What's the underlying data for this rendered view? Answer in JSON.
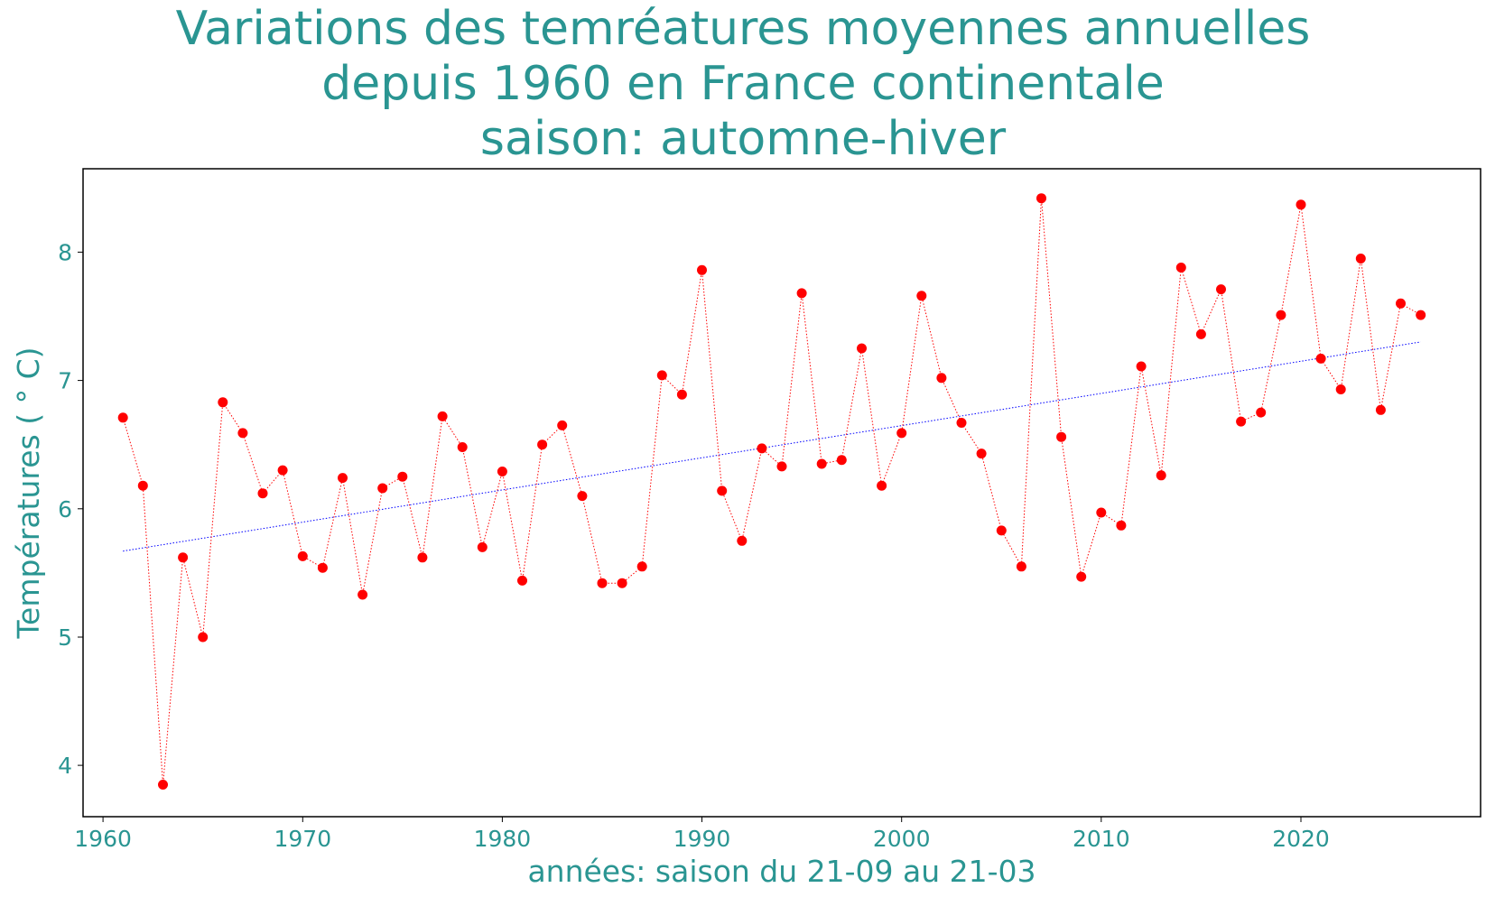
{
  "chart_data": {
    "type": "line",
    "title_lines": [
      "Variations des temréatures moyennes annuelles",
      "depuis 1960 en France continentale",
      "saison: automne-hiver"
    ],
    "xlabel": "années: saison du 21-09 au 21-03",
    "ylabel": "Températures ( ° C)",
    "xlim": [
      1959,
      2029
    ],
    "ylim": [
      3.6,
      8.65
    ],
    "xticks": [
      1960,
      1970,
      1980,
      1990,
      2000,
      2010,
      2020
    ],
    "yticks": [
      4,
      5,
      6,
      7,
      8
    ],
    "grid": false,
    "legend": "none",
    "colors": {
      "text": "#2a9592",
      "series": "#ff0000",
      "trend": "#0000ff",
      "frame": "#000000"
    },
    "series": [
      {
        "style": "red dotted line with circle markers",
        "x": [
          1961,
          1962,
          1963,
          1964,
          1965,
          1966,
          1967,
          1968,
          1969,
          1970,
          1971,
          1972,
          1973,
          1974,
          1975,
          1976,
          1977,
          1978,
          1979,
          1980,
          1981,
          1982,
          1983,
          1984,
          1985,
          1986,
          1987,
          1988,
          1989,
          1990,
          1991,
          1992,
          1993,
          1994,
          1995,
          1996,
          1997,
          1998,
          1999,
          2000,
          2001,
          2002,
          2003,
          2004,
          2005,
          2006,
          2007,
          2008,
          2009,
          2010,
          2011,
          2012,
          2013,
          2014,
          2015,
          2016,
          2017,
          2018,
          2019,
          2020,
          2021,
          2022,
          2023,
          2024,
          2025,
          2026
        ],
        "y": [
          6.71,
          6.18,
          3.85,
          5.62,
          5.0,
          6.83,
          6.59,
          6.12,
          6.3,
          5.63,
          5.54,
          6.24,
          5.33,
          6.16,
          6.25,
          5.62,
          6.72,
          6.48,
          5.7,
          6.29,
          5.44,
          6.5,
          6.65,
          6.1,
          5.42,
          5.42,
          5.55,
          7.04,
          6.89,
          7.86,
          6.14,
          5.75,
          6.47,
          6.33,
          7.68,
          6.35,
          6.38,
          7.25,
          6.18,
          6.59,
          7.66,
          7.02,
          6.67,
          6.43,
          5.83,
          5.55,
          8.42,
          6.56,
          5.47,
          5.97,
          5.87,
          7.11,
          6.26,
          7.88,
          7.36,
          7.71,
          6.68,
          6.75,
          7.51,
          8.37,
          7.17,
          6.93,
          7.95,
          6.77,
          7.6,
          7.51
        ]
      },
      {
        "style": "blue dotted linear trend",
        "x": [
          1961,
          2026
        ],
        "y": [
          5.67,
          7.3
        ]
      }
    ]
  }
}
